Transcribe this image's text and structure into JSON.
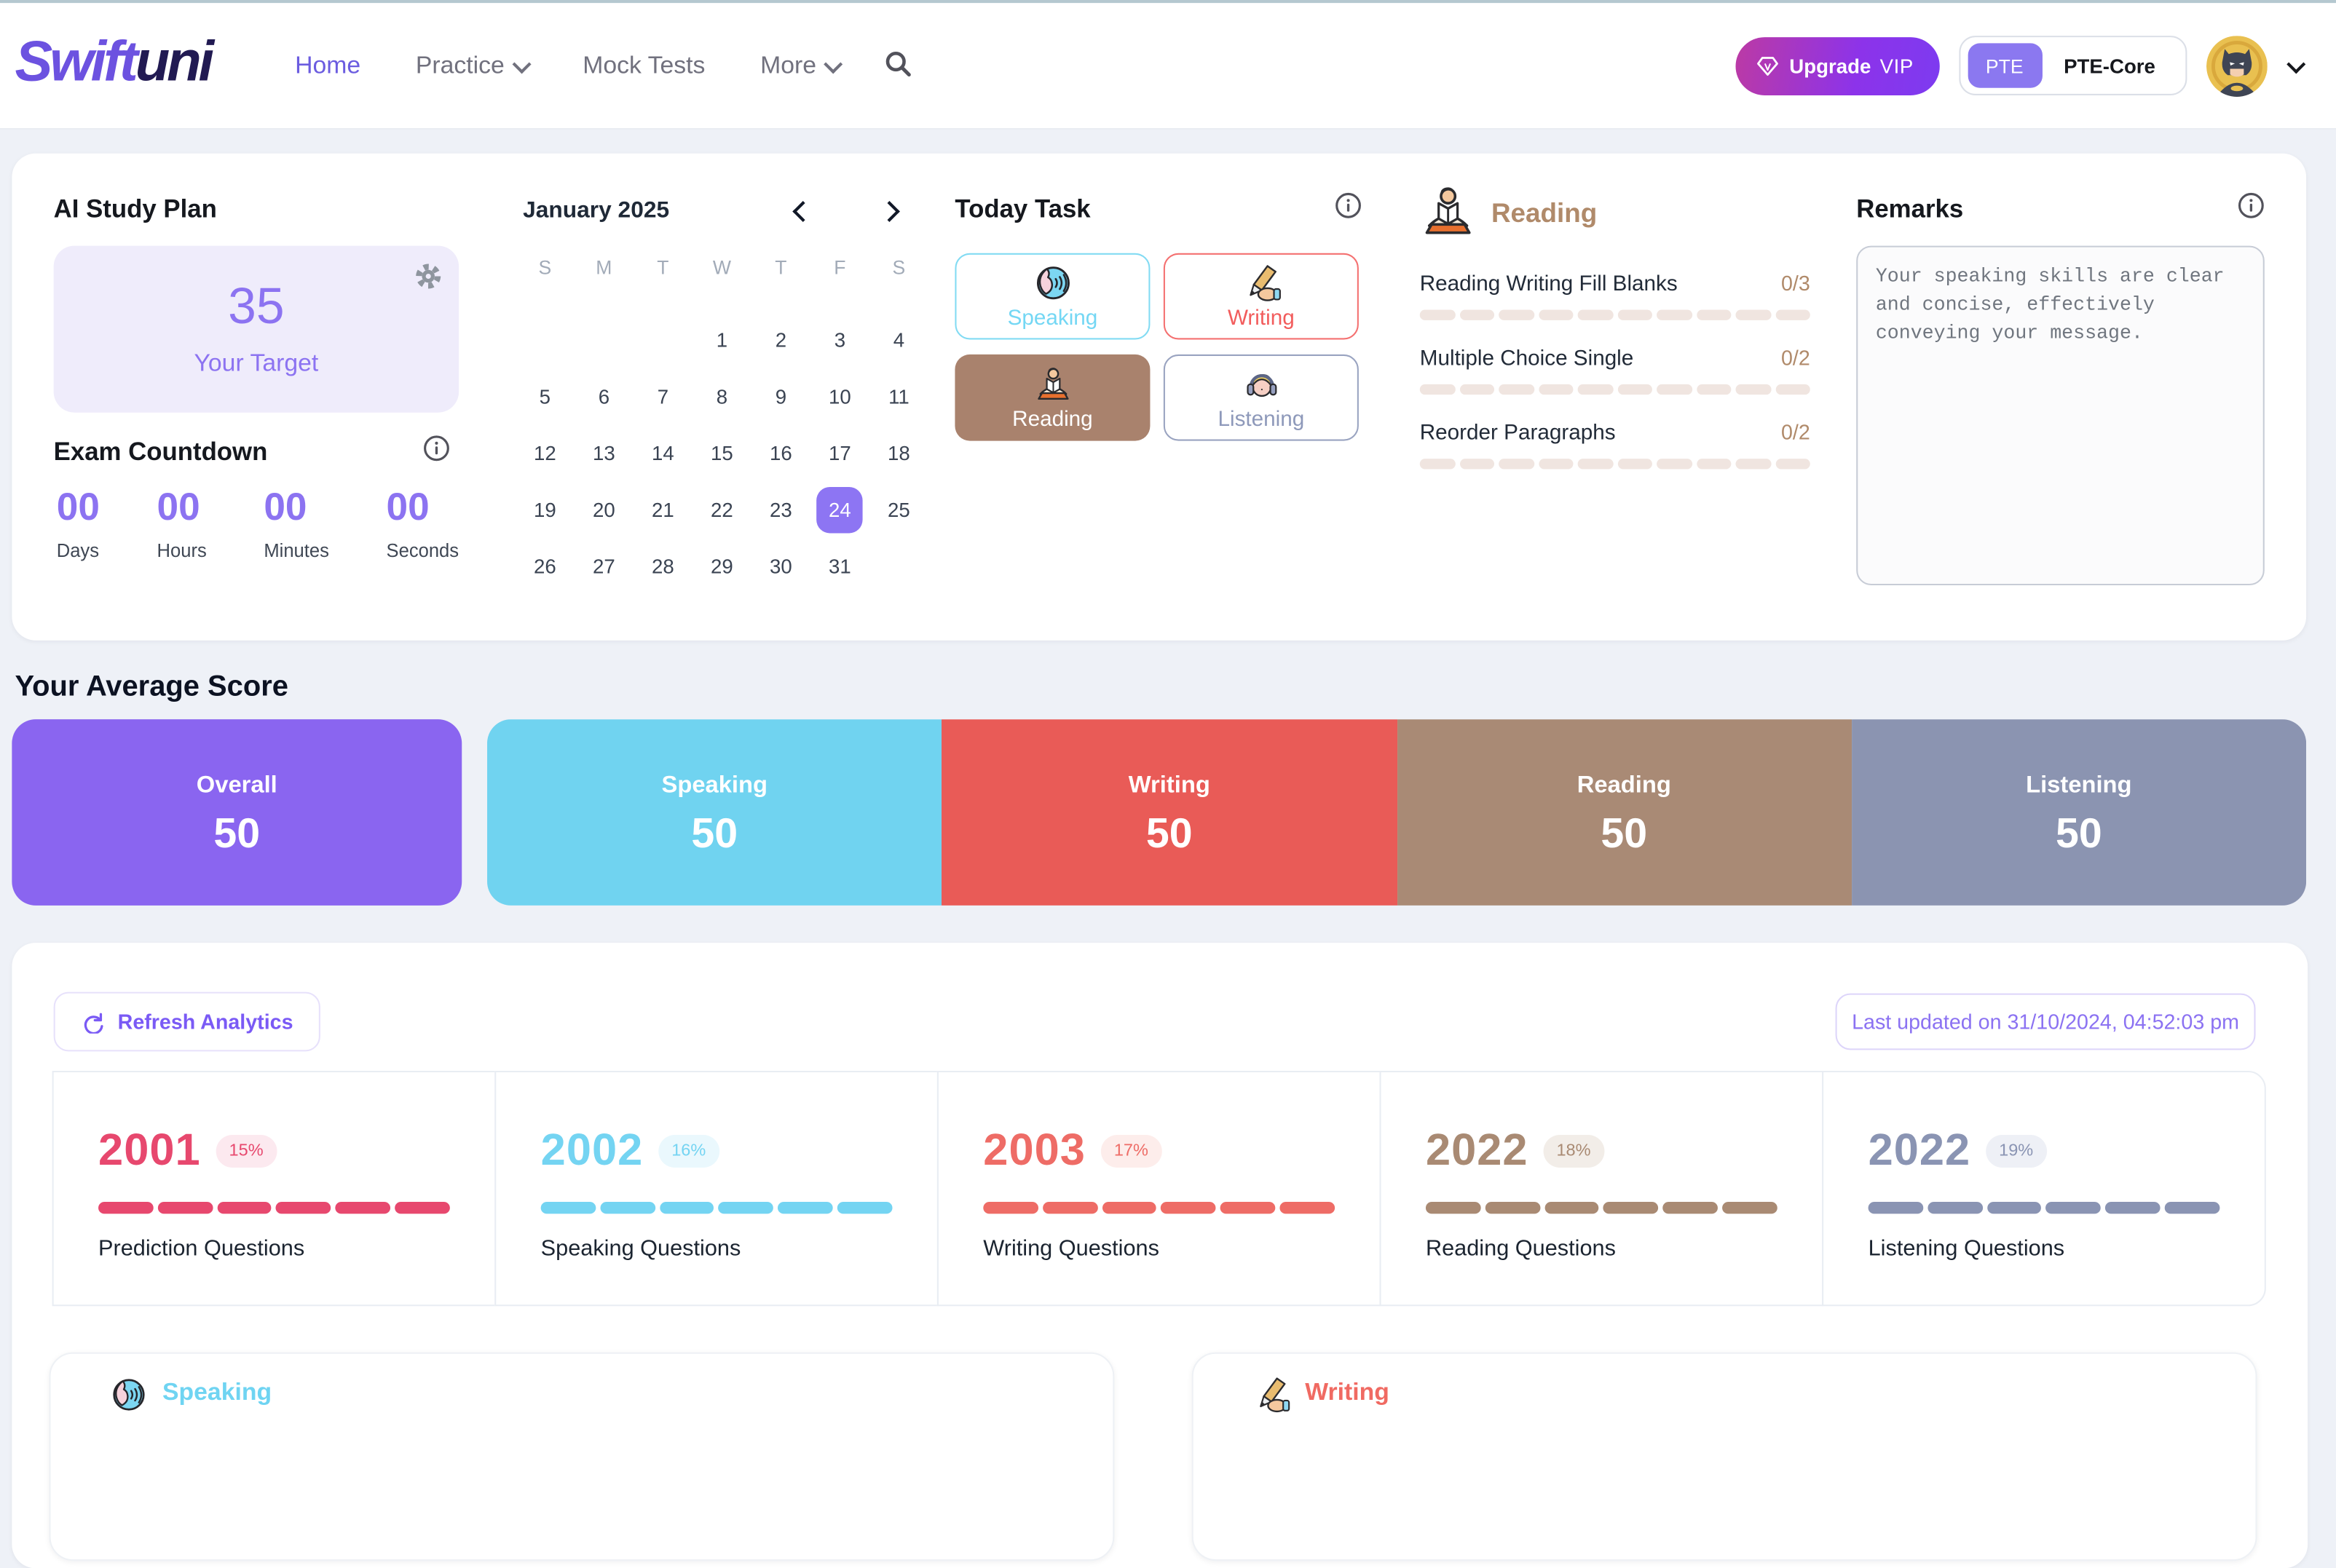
{
  "header": {
    "logo_part1": "Swift",
    "logo_part2": "uni",
    "nav": [
      {
        "label": "Home",
        "cls": "active"
      },
      {
        "label": "Practice",
        "chev": "show"
      },
      {
        "label": "Mock Tests"
      },
      {
        "label": "More",
        "chev": "show"
      }
    ],
    "upgrade_label": "Upgrade",
    "upgrade_vip": "VIP",
    "toggle_selected": "PTE",
    "toggle_other": "PTE-Core"
  },
  "study_plan": {
    "title": "AI Study Plan",
    "target_value": "35",
    "target_label": "Your Target",
    "countdown_title": "Exam Countdown",
    "countdown": [
      {
        "value": "00",
        "label": "Days"
      },
      {
        "value": "00",
        "label": "Hours"
      },
      {
        "value": "00",
        "label": "Minutes"
      },
      {
        "value": "00",
        "label": "Seconds"
      }
    ]
  },
  "calendar": {
    "title": "January 2025",
    "weekdays": [
      "S",
      "M",
      "T",
      "W",
      "T",
      "F",
      "S"
    ],
    "cells": [
      {
        "d": ""
      },
      {
        "d": ""
      },
      {
        "d": ""
      },
      {
        "d": "1"
      },
      {
        "d": "2"
      },
      {
        "d": "3"
      },
      {
        "d": "4"
      },
      {
        "d": "5"
      },
      {
        "d": "6"
      },
      {
        "d": "7"
      },
      {
        "d": "8"
      },
      {
        "d": "9"
      },
      {
        "d": "10"
      },
      {
        "d": "11"
      },
      {
        "d": "12"
      },
      {
        "d": "13"
      },
      {
        "d": "14"
      },
      {
        "d": "15"
      },
      {
        "d": "16"
      },
      {
        "d": "17"
      },
      {
        "d": "18"
      },
      {
        "d": "19"
      },
      {
        "d": "20"
      },
      {
        "d": "21"
      },
      {
        "d": "22"
      },
      {
        "d": "23"
      },
      {
        "d": "24",
        "cls": "selected"
      },
      {
        "d": "25"
      },
      {
        "d": "26"
      },
      {
        "d": "27"
      },
      {
        "d": "28"
      },
      {
        "d": "29"
      },
      {
        "d": "30"
      },
      {
        "d": "31"
      },
      {
        "d": ""
      }
    ]
  },
  "today_task": {
    "title": "Today Task",
    "cards": [
      {
        "label": "Speaking",
        "cls": "speaking"
      },
      {
        "label": "Writing",
        "cls": "writing"
      },
      {
        "label": "Reading",
        "cls": "reading"
      },
      {
        "label": "Listening",
        "cls": "listening"
      }
    ]
  },
  "reading_panel": {
    "title": "Reading",
    "segments": 10,
    "items": [
      {
        "label": "Reading Writing Fill Blanks",
        "count": "0/3"
      },
      {
        "label": "Multiple Choice Single",
        "count": "0/2"
      },
      {
        "label": "Reorder Paragraphs",
        "count": "0/2"
      }
    ]
  },
  "remarks": {
    "title": "Remarks",
    "text": "Your speaking skills are clear and concise, effectively conveying your message."
  },
  "average_score": {
    "title": "Your Average Score",
    "overall": {
      "label": "Overall",
      "value": "50",
      "color": "#8a65f0"
    },
    "sections": [
      {
        "label": "Speaking",
        "value": "50",
        "color": "#70d3f0"
      },
      {
        "label": "Writing",
        "value": "50",
        "color": "#e95b57"
      },
      {
        "label": "Reading",
        "value": "50",
        "color": "#a98a75"
      },
      {
        "label": "Listening",
        "value": "50",
        "color": "#8b94b1"
      }
    ]
  },
  "analytics": {
    "refresh_label": "Refresh Analytics",
    "last_updated": "Last updated on 31/10/2024, 04:52:03 pm",
    "bar_segments": 6,
    "stats": [
      {
        "value": "2001",
        "percent": "15%",
        "label": "Prediction Questions",
        "color": "#e7486e",
        "badge_bg": "#fce9ef"
      },
      {
        "value": "2002",
        "percent": "16%",
        "label": "Speaking Questions",
        "color": "#74d4f2",
        "badge_bg": "#eaf8fd"
      },
      {
        "value": "2003",
        "percent": "17%",
        "label": "Writing Questions",
        "color": "#ee6c66",
        "badge_bg": "#fdedeb"
      },
      {
        "value": "2022",
        "percent": "18%",
        "label": "Reading Questions",
        "color": "#a98a73",
        "badge_bg": "#f2ede8"
      },
      {
        "value": "2022",
        "percent": "19%",
        "label": "Listening Questions",
        "color": "#8a94b3",
        "badge_bg": "#eef0f6"
      }
    ],
    "panels": [
      {
        "label": "Speaking",
        "cls": "speaking",
        "color": "#6fd4f2"
      },
      {
        "label": "Writing",
        "cls": "writing",
        "color": "#f06a62"
      }
    ]
  }
}
